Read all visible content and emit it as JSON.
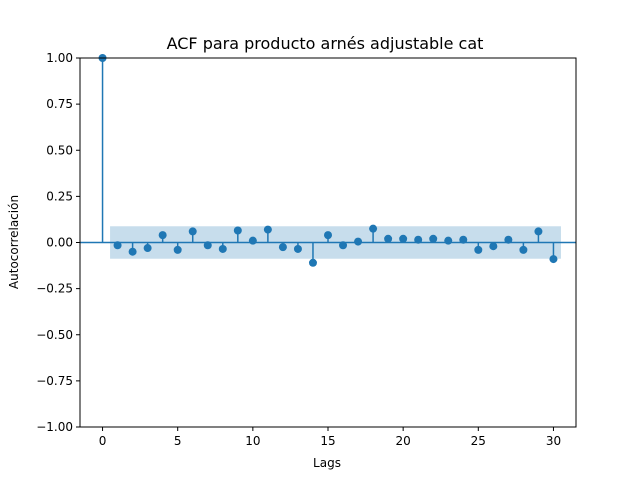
{
  "chart_data": {
    "type": "scatter",
    "title": "ACF para producto arnés adjustable cat",
    "xlabel": "Lags",
    "ylabel": "Autocorrelación",
    "xlim": [
      -1.5,
      31.5
    ],
    "ylim": [
      -1.0,
      1.0
    ],
    "x_ticks": [
      0,
      5,
      10,
      15,
      20,
      25,
      30
    ],
    "x_tick_labels": [
      "0",
      "5",
      "10",
      "15",
      "20",
      "25",
      "30"
    ],
    "y_ticks": [
      -1.0,
      -0.75,
      -0.5,
      -0.25,
      0.0,
      0.25,
      0.5,
      0.75,
      1.0
    ],
    "y_tick_labels": [
      "−1.00",
      "−0.75",
      "−0.50",
      "−0.25",
      "0.00",
      "0.25",
      "0.50",
      "0.75",
      "1.00"
    ],
    "grid": false,
    "series": [
      {
        "x": [
          0,
          1,
          2,
          3,
          4,
          5,
          6,
          7,
          8,
          9,
          10,
          11,
          12,
          13,
          14,
          15,
          16,
          17,
          18,
          19,
          20,
          21,
          22,
          23,
          24,
          25,
          26,
          27,
          28,
          29,
          30
        ],
        "values": [
          1.0,
          -0.015,
          -0.05,
          -0.03,
          0.04,
          -0.04,
          0.06,
          -0.015,
          -0.035,
          0.065,
          0.01,
          0.07,
          -0.025,
          -0.035,
          -0.11,
          0.04,
          -0.015,
          0.005,
          0.075,
          0.02,
          0.02,
          0.015,
          0.02,
          0.01,
          0.015,
          -0.04,
          -0.02,
          0.015,
          -0.04,
          0.06,
          -0.09
        ]
      }
    ],
    "confidence_band": {
      "x_start": 0.5,
      "x_end": 30.5,
      "upper": 0.088,
      "lower": -0.088
    },
    "colors": {
      "marker": "#1f77b4",
      "band": "#1f77b4",
      "zero_line": "#1f77b4"
    }
  }
}
